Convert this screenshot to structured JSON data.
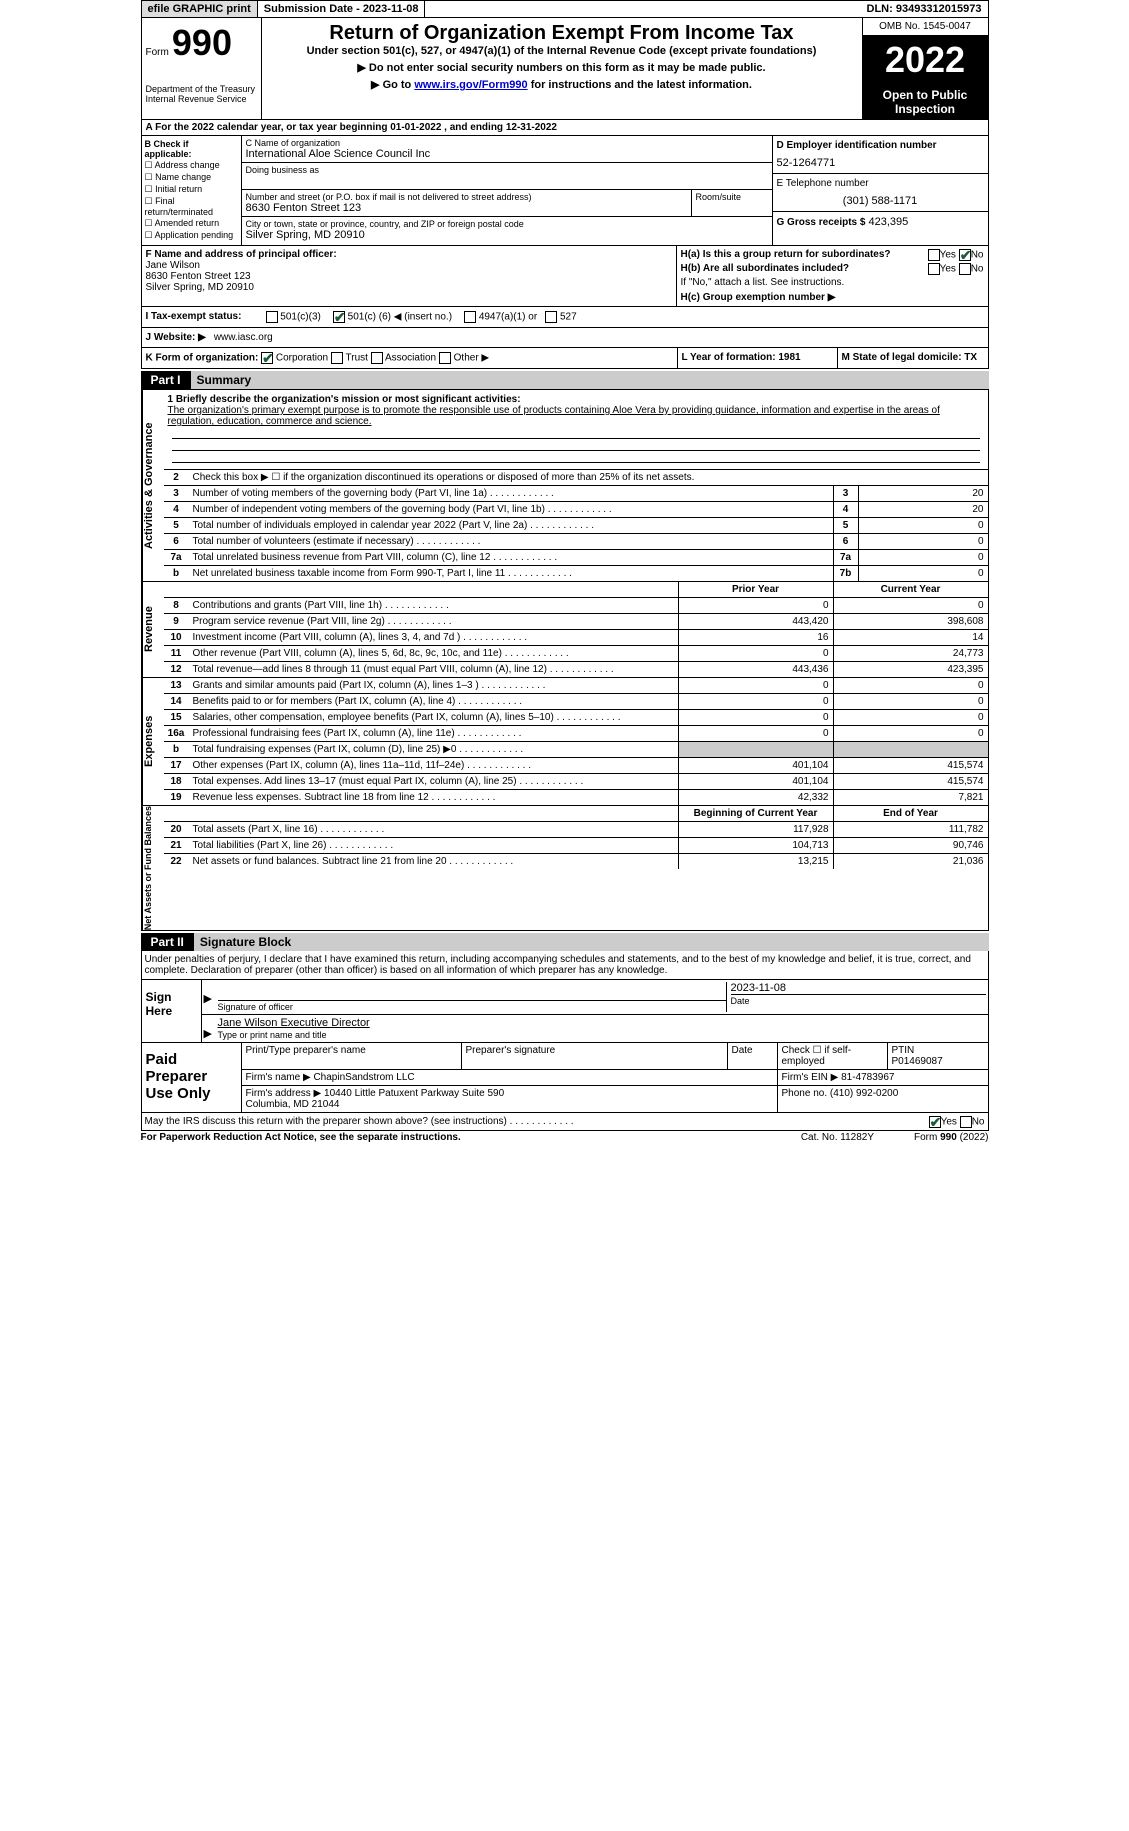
{
  "header": {
    "efile": "efile GRAPHIC print",
    "submission": "Submission Date - 2023-11-08",
    "dln": "DLN: 93493312015973"
  },
  "top": {
    "form_prefix": "Form",
    "form_number": "990",
    "title": "Return of Organization Exempt From Income Tax",
    "subtitle": "Under section 501(c), 527, or 4947(a)(1) of the Internal Revenue Code (except private foundations)",
    "instr1": "▶ Do not enter social security numbers on this form as it may be made public.",
    "instr2_pre": "▶ Go to ",
    "instr2_link": "www.irs.gov/Form990",
    "instr2_post": " for instructions and the latest information.",
    "dept": "Department of the Treasury\nInternal Revenue Service",
    "omb": "OMB No. 1545-0047",
    "year": "2022",
    "open": "Open to Public\nInspection"
  },
  "row_a": "A For the 2022 calendar year, or tax year beginning 01-01-2022   , and ending 12-31-2022",
  "b": {
    "label": "B Check if applicable:",
    "items": [
      "Address change",
      "Name change",
      "Initial return",
      "Final return/terminated",
      "Amended return",
      "Application pending"
    ]
  },
  "c": {
    "name_label": "C Name of organization",
    "name": "International Aloe Science Council Inc",
    "dba_label": "Doing business as",
    "street_label": "Number and street (or P.O. box if mail is not delivered to street address)",
    "room_label": "Room/suite",
    "street": "8630 Fenton Street 123",
    "city_label": "City or town, state or province, country, and ZIP or foreign postal code",
    "city": "Silver Spring, MD  20910"
  },
  "d": {
    "label": "D Employer identification number",
    "ein": "52-1264771"
  },
  "e": {
    "label": "E Telephone number",
    "phone": "(301) 588-1171"
  },
  "g": {
    "label": "G Gross receipts $",
    "amount": "423,395"
  },
  "f": {
    "label": "F  Name and address of principal officer:",
    "name": "Jane Wilson",
    "addr1": "8630 Fenton Street 123",
    "addr2": "Silver Spring, MD  20910"
  },
  "h": {
    "ha": "H(a)  Is this a group return for subordinates?",
    "hb": "H(b)  Are all subordinates included?",
    "hb_note": "If \"No,\" attach a list. See instructions.",
    "hc": "H(c)  Group exemption number ▶"
  },
  "i": {
    "label": "I  Tax-exempt status:",
    "opt1": "501(c)(3)",
    "opt2_pre": "501(c) (",
    "opt2_num": "6",
    "opt2_post": ") ◀ (insert no.)",
    "opt3": "4947(a)(1) or",
    "opt4": "527"
  },
  "j": {
    "label": "J  Website: ▶",
    "site": "www.iasc.org"
  },
  "k": {
    "label": "K Form of organization:",
    "opts": [
      "Corporation",
      "Trust",
      "Association",
      "Other ▶"
    ],
    "l": "L Year of formation: 1981",
    "m": "M State of legal domicile: TX"
  },
  "part1": {
    "tag": "Part I",
    "title": "Summary"
  },
  "summary": {
    "briefly_label": "1  Briefly describe the organization's mission or most significant activities:",
    "briefly_text": "The organization's primary exempt purpose is to promote the responsible use of products containing Aloe Vera by providing guidance, information and expertise in the areas of regulation, education, commerce and science.",
    "line2": "Check this box ▶ ☐  if the organization discontinued its operations or disposed of more than 25% of its net assets.",
    "governance": [
      {
        "n": "3",
        "d": "Number of voting members of the governing body (Part VI, line 1a)",
        "bx": "3",
        "v": "20"
      },
      {
        "n": "4",
        "d": "Number of independent voting members of the governing body (Part VI, line 1b)",
        "bx": "4",
        "v": "20"
      },
      {
        "n": "5",
        "d": "Total number of individuals employed in calendar year 2022 (Part V, line 2a)",
        "bx": "5",
        "v": "0"
      },
      {
        "n": "6",
        "d": "Total number of volunteers (estimate if necessary)",
        "bx": "6",
        "v": "0"
      },
      {
        "n": "7a",
        "d": "Total unrelated business revenue from Part VIII, column (C), line 12",
        "bx": "7a",
        "v": "0"
      },
      {
        "n": "b",
        "d": "Net unrelated business taxable income from Form 990-T, Part I, line 11",
        "bx": "7b",
        "v": "0"
      }
    ],
    "prior": "Prior Year",
    "current": "Current Year",
    "revenue": [
      {
        "n": "8",
        "d": "Contributions and grants (Part VIII, line 1h)",
        "p": "0",
        "c": "0"
      },
      {
        "n": "9",
        "d": "Program service revenue (Part VIII, line 2g)",
        "p": "443,420",
        "c": "398,608"
      },
      {
        "n": "10",
        "d": "Investment income (Part VIII, column (A), lines 3, 4, and 7d )",
        "p": "16",
        "c": "14"
      },
      {
        "n": "11",
        "d": "Other revenue (Part VIII, column (A), lines 5, 6d, 8c, 9c, 10c, and 11e)",
        "p": "0",
        "c": "24,773"
      },
      {
        "n": "12",
        "d": "Total revenue—add lines 8 through 11 (must equal Part VIII, column (A), line 12)",
        "p": "443,436",
        "c": "423,395"
      }
    ],
    "expenses": [
      {
        "n": "13",
        "d": "Grants and similar amounts paid (Part IX, column (A), lines 1–3 )",
        "p": "0",
        "c": "0"
      },
      {
        "n": "14",
        "d": "Benefits paid to or for members (Part IX, column (A), line 4)",
        "p": "0",
        "c": "0"
      },
      {
        "n": "15",
        "d": "Salaries, other compensation, employee benefits (Part IX, column (A), lines 5–10)",
        "p": "0",
        "c": "0"
      },
      {
        "n": "16a",
        "d": "Professional fundraising fees (Part IX, column (A), line 11e)",
        "p": "0",
        "c": "0"
      },
      {
        "n": "b",
        "d": "Total fundraising expenses (Part IX, column (D), line 25) ▶0",
        "p": "grey",
        "c": "grey"
      },
      {
        "n": "17",
        "d": "Other expenses (Part IX, column (A), lines 11a–11d, 11f–24e)",
        "p": "401,104",
        "c": "415,574"
      },
      {
        "n": "18",
        "d": "Total expenses. Add lines 13–17 (must equal Part IX, column (A), line 25)",
        "p": "401,104",
        "c": "415,574"
      },
      {
        "n": "19",
        "d": "Revenue less expenses. Subtract line 18 from line 12",
        "p": "42,332",
        "c": "7,821"
      }
    ],
    "boy": "Beginning of Current Year",
    "eoy": "End of Year",
    "netassets": [
      {
        "n": "20",
        "d": "Total assets (Part X, line 16)",
        "p": "117,928",
        "c": "111,782"
      },
      {
        "n": "21",
        "d": "Total liabilities (Part X, line 26)",
        "p": "104,713",
        "c": "90,746"
      },
      {
        "n": "22",
        "d": "Net assets or fund balances. Subtract line 21 from line 20",
        "p": "13,215",
        "c": "21,036"
      }
    ]
  },
  "part2": {
    "tag": "Part II",
    "title": "Signature Block"
  },
  "penalty": "Under penalties of perjury, I declare that I have examined this return, including accompanying schedules and statements, and to the best of my knowledge and belief, it is true, correct, and complete. Declaration of preparer (other than officer) is based on all information of which preparer has any knowledge.",
  "sign": {
    "here": "Sign Here",
    "sig_label": "Signature of officer",
    "date_label": "Date",
    "date": "2023-11-08",
    "name": "Jane Wilson  Executive Director",
    "name_label": "Type or print name and title"
  },
  "prep": {
    "title": "Paid Preparer Use Only",
    "r1c1_label": "Print/Type preparer's name",
    "r1c2_label": "Preparer's signature",
    "r1c3_label": "Date",
    "r1c4_label": "Check ☐ if self-employed",
    "r1c5_label": "PTIN",
    "ptin": "P01469087",
    "firm_name_label": "Firm's name    ▶",
    "firm_name": "ChapinSandstrom LLC",
    "firm_ein_label": "Firm's EIN ▶",
    "firm_ein": "81-4783967",
    "firm_addr_label": "Firm's address ▶",
    "firm_addr": "10440 Little Patuxent Parkway Suite 590\nColumbia, MD  21044",
    "phone_label": "Phone no.",
    "phone": "(410) 992-0200"
  },
  "may_irs": "May the IRS discuss this return with the preparer shown above? (see instructions)",
  "footer": {
    "left": "For Paperwork Reduction Act Notice, see the separate instructions.",
    "cat": "Cat. No. 11282Y",
    "form": "Form 990 (2022)"
  },
  "yes": "Yes",
  "no": "No"
}
